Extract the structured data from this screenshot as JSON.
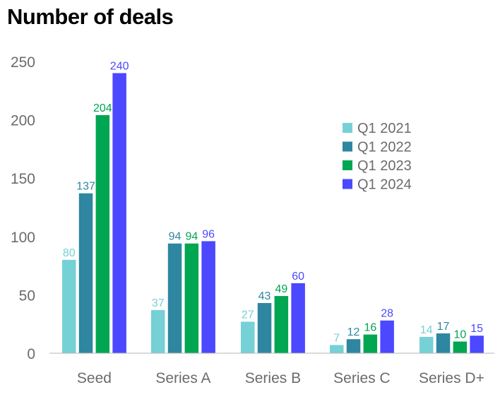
{
  "chart_data": {
    "type": "bar",
    "title": "Number of deals",
    "categories": [
      "Seed",
      "Series A",
      "Series B",
      "Series C",
      "Series D+"
    ],
    "series": [
      {
        "name": "Q1 2021",
        "color": "#75d1d6",
        "values": [
          80,
          37,
          27,
          7,
          14
        ]
      },
      {
        "name": "Q1 2022",
        "color": "#2e86a0",
        "values": [
          137,
          94,
          43,
          12,
          17
        ]
      },
      {
        "name": "Q1 2023",
        "color": "#00a651",
        "values": [
          204,
          94,
          49,
          16,
          10
        ]
      },
      {
        "name": "Q1 2024",
        "color": "#4b48ff",
        "values": [
          240,
          96,
          60,
          28,
          15
        ]
      }
    ],
    "ylim": [
      0,
      250
    ],
    "yticks": [
      0,
      50,
      100,
      150,
      200,
      250
    ],
    "grid": false,
    "legend": "right"
  }
}
